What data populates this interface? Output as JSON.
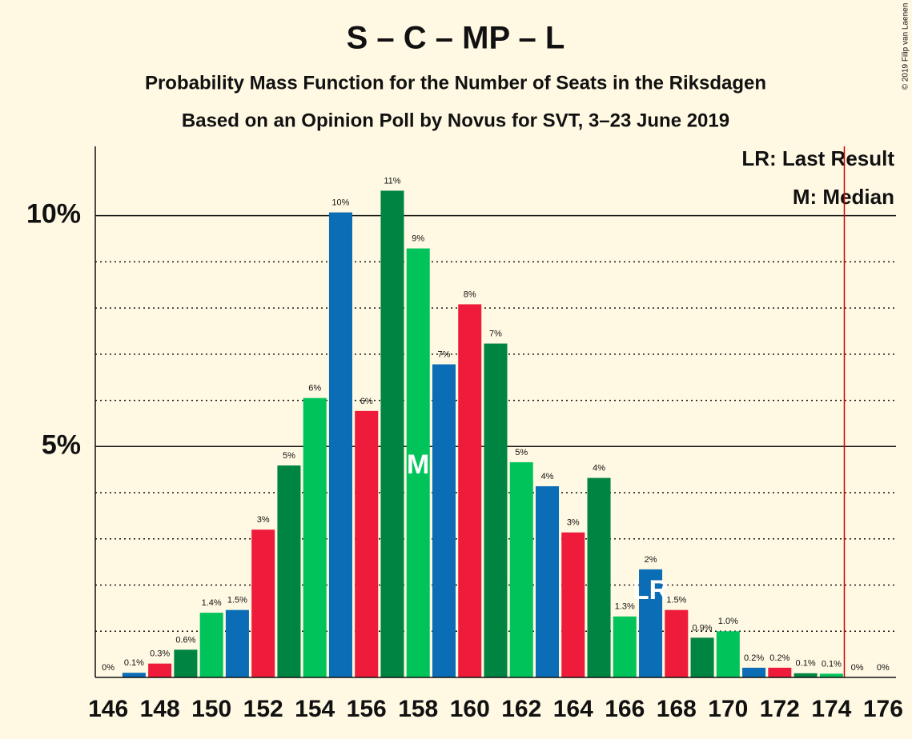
{
  "chart_data": {
    "type": "bar",
    "title": "S – C – MP – L",
    "subtitle": "Probability Mass Function for the Number of Seats in the Riksdagen",
    "subtitle2": "Based on an Opinion Poll by Novus for SVT, 3–23 June 2019",
    "copyright": "© 2019 Filip van Laenen",
    "legend": [
      "LR: Last Result",
      "M: Median"
    ],
    "x": [
      146,
      147,
      148,
      149,
      150,
      151,
      152,
      153,
      154,
      155,
      156,
      157,
      158,
      159,
      160,
      161,
      162,
      163,
      164,
      165,
      166,
      167,
      168,
      169,
      170,
      171,
      172,
      173,
      174,
      175,
      176
    ],
    "values": [
      0,
      0.1,
      0.3,
      0.6,
      1.4,
      1.46,
      3.2,
      4.59,
      6.05,
      10.07,
      5.77,
      10.54,
      9.29,
      6.78,
      8.08,
      7.23,
      4.66,
      4.14,
      3.14,
      4.32,
      1.32,
      2.34,
      1.46,
      0.86,
      1.0,
      0.21,
      0.21,
      0.09,
      0.08,
      0,
      0
    ],
    "value_labels": [
      "0%",
      "0.1%",
      "0.3%",
      "0.6%",
      "1.4%",
      "1.5%",
      "3%",
      "5%",
      "6%",
      "10%",
      "6%",
      "11%",
      "9%",
      "7%",
      "8%",
      "7%",
      "5%",
      "4%",
      "3%",
      "4%",
      "1.3%",
      "2%",
      "1.5%",
      "0.9%",
      "1.0%",
      "0.2%",
      "0.2%",
      "0.1%",
      "0.1%",
      "0%",
      "0%"
    ],
    "colors": [
      "#00c45a",
      "#0a6db5",
      "#ee1c3a",
      "#008442",
      "#00c45a",
      "#0a6db5",
      "#ee1c3a",
      "#008442",
      "#00c45a",
      "#0a6db5",
      "#ee1c3a",
      "#008442",
      "#00c45a",
      "#0a6db5",
      "#ee1c3a",
      "#008442",
      "#00c45a",
      "#0a6db5",
      "#ee1c3a",
      "#008442",
      "#00c45a",
      "#0a6db5",
      "#ee1c3a",
      "#008442",
      "#00c45a",
      "#0a6db5",
      "#ee1c3a",
      "#008442",
      "#00c45a",
      "#0a6db5",
      "#ee1c3a"
    ],
    "bar_marks": [
      {
        "x": 158,
        "label": "M"
      },
      {
        "x": 167,
        "label": "LR"
      }
    ],
    "vline": {
      "x": 174.5,
      "color": "#d40000"
    },
    "xlim": [
      145.5,
      176.5
    ],
    "xticks": [
      146,
      148,
      150,
      152,
      154,
      156,
      158,
      160,
      162,
      164,
      166,
      168,
      170,
      172,
      174,
      176
    ],
    "ylim": [
      0,
      11.5
    ],
    "yticks": [
      {
        "value": 5,
        "label": "5%"
      },
      {
        "value": 10,
        "label": "10%"
      }
    ],
    "minor_yticks": [
      1,
      2,
      3,
      4,
      6,
      7,
      8,
      9
    ]
  }
}
